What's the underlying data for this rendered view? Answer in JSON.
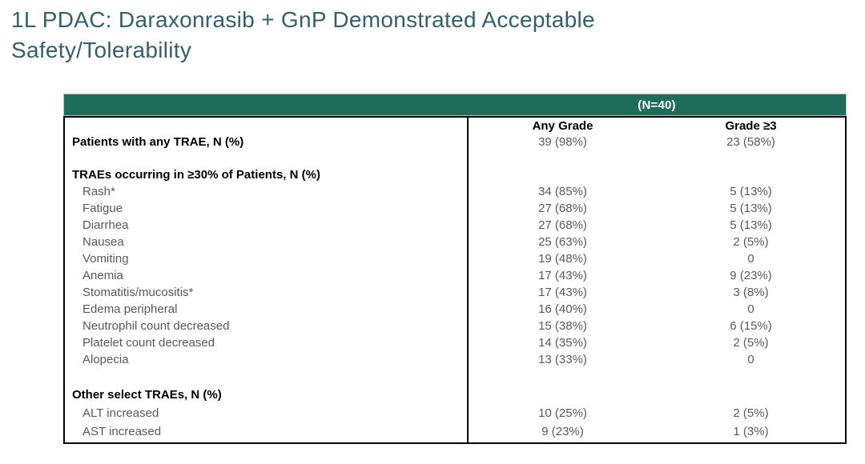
{
  "title": {
    "full": "1L PDAC: Daraxonrasib + GnP Demonstrated Acceptable Safety/Tolerability",
    "lines": [
      "1L PDAC: Daraxonrasib + GnP Demonstrated Acceptable",
      "Safety/Tolerability"
    ]
  },
  "table": {
    "group_header": "(N=40)",
    "columns": [
      "Any Grade",
      "Grade ≥3"
    ],
    "rows": [
      {
        "type": "section",
        "label": "Patients with any TRAE, N (%)",
        "any_grade": "39 (98%)",
        "grade_ge3": "23 (58%)"
      },
      {
        "type": "spacer"
      },
      {
        "type": "section",
        "label": "TRAEs occurring in ≥30% of Patients, N (%)",
        "any_grade": "",
        "grade_ge3": ""
      },
      {
        "type": "item",
        "label": "Rash*",
        "any_grade": "34 (85%)",
        "grade_ge3": "5 (13%)"
      },
      {
        "type": "item",
        "label": "Fatigue",
        "any_grade": "27 (68%)",
        "grade_ge3": "5 (13%)"
      },
      {
        "type": "item",
        "label": "Diarrhea",
        "any_grade": "27 (68%)",
        "grade_ge3": "5 (13%)"
      },
      {
        "type": "item",
        "label": "Nausea",
        "any_grade": "25 (63%)",
        "grade_ge3": "2 (5%)"
      },
      {
        "type": "item",
        "label": "Vomiting",
        "any_grade": "19 (48%)",
        "grade_ge3": "0"
      },
      {
        "type": "item",
        "label": "Anemia",
        "any_grade": "17 (43%)",
        "grade_ge3": "9 (23%)"
      },
      {
        "type": "item",
        "label": "Stomatitis/mucositis*",
        "any_grade": "17 (43%)",
        "grade_ge3": "3 (8%)"
      },
      {
        "type": "item",
        "label": "Edema peripheral",
        "any_grade": "16 (40%)",
        "grade_ge3": "0"
      },
      {
        "type": "item",
        "label": "Neutrophil count decreased",
        "any_grade": "15 (38%)",
        "grade_ge3": "6 (15%)"
      },
      {
        "type": "item",
        "label": "Platelet count decreased",
        "any_grade": "14 (35%)",
        "grade_ge3": "2 (5%)"
      },
      {
        "type": "item",
        "label": "Alopecia",
        "any_grade": "13 (33%)",
        "grade_ge3": "0"
      },
      {
        "type": "spacer"
      },
      {
        "type": "section",
        "label": "Other select TRAEs, N (%)",
        "any_grade": "",
        "grade_ge3": ""
      },
      {
        "type": "item",
        "label": "ALT increased",
        "any_grade": "10 (25%)",
        "grade_ge3": "2 (5%)"
      },
      {
        "type": "item",
        "label": "AST increased",
        "any_grade": "9 (23%)",
        "grade_ge3": "1 (3%)"
      }
    ]
  },
  "colors": {
    "table_header_teal": "#1E6C5A",
    "title_teal": "#33606A",
    "body_gray_text": "#58595B",
    "border_black": "#000000",
    "header_text_white": "#FFFFFF"
  }
}
